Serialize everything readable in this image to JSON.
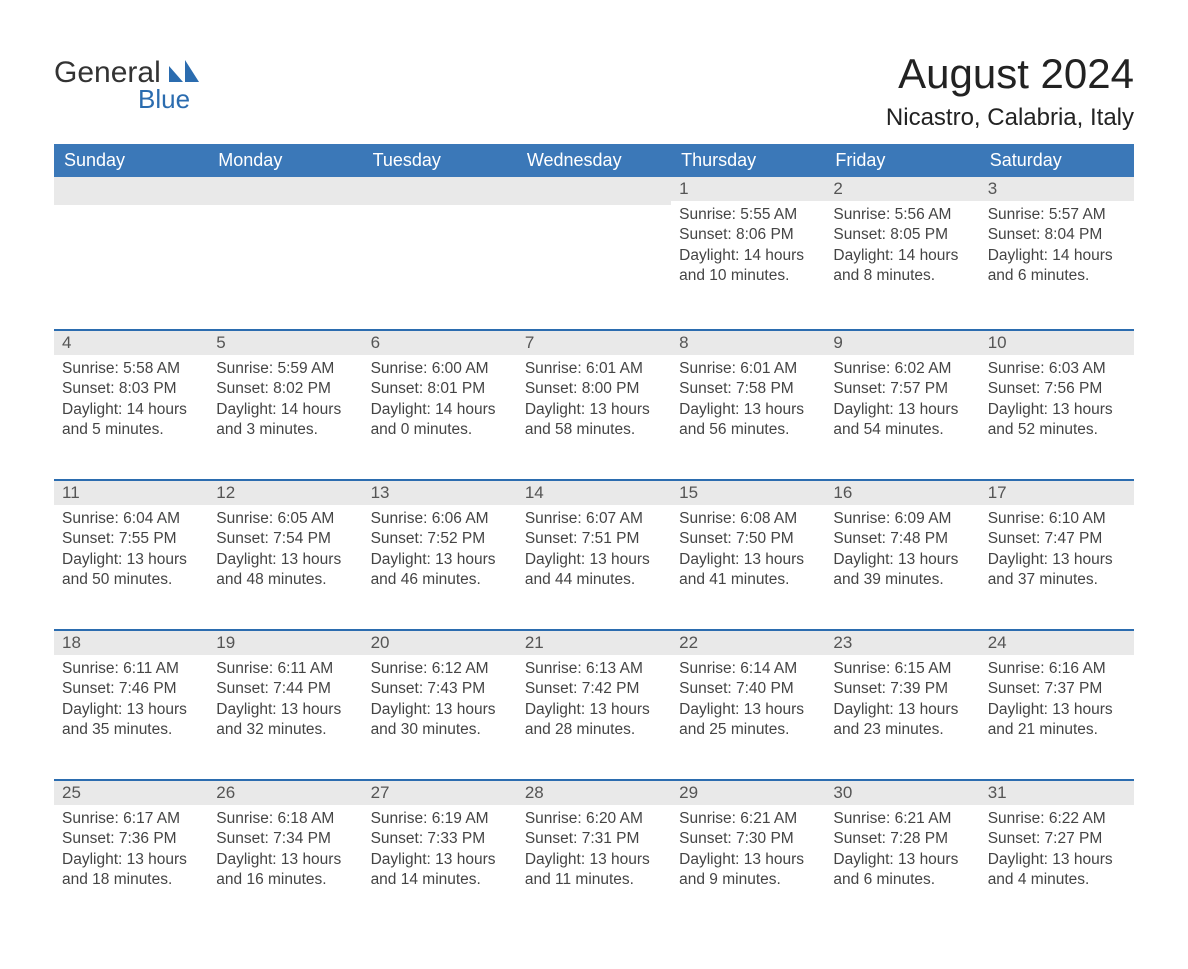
{
  "brand": {
    "word1": "General",
    "word2": "Blue"
  },
  "title": "August 2024",
  "subtitle": "Nicastro, Calabria, Italy",
  "colors": {
    "header_blue": "#3b78b8",
    "accent_blue": "#2b6caf",
    "day_bg": "#e9e9e9",
    "page_bg": "#ffffff",
    "dark_text": "#333333",
    "body_text": "#444444"
  },
  "calendar": {
    "type": "table",
    "columns": [
      "Sunday",
      "Monday",
      "Tuesday",
      "Wednesday",
      "Thursday",
      "Friday",
      "Saturday"
    ],
    "weeks": [
      [
        null,
        null,
        null,
        null,
        {
          "n": "1",
          "sunrise": "Sunrise: 5:55 AM",
          "sunset": "Sunset: 8:06 PM",
          "day": "Daylight: 14 hours and 10 minutes."
        },
        {
          "n": "2",
          "sunrise": "Sunrise: 5:56 AM",
          "sunset": "Sunset: 8:05 PM",
          "day": "Daylight: 14 hours and 8 minutes."
        },
        {
          "n": "3",
          "sunrise": "Sunrise: 5:57 AM",
          "sunset": "Sunset: 8:04 PM",
          "day": "Daylight: 14 hours and 6 minutes."
        }
      ],
      [
        {
          "n": "4",
          "sunrise": "Sunrise: 5:58 AM",
          "sunset": "Sunset: 8:03 PM",
          "day": "Daylight: 14 hours and 5 minutes."
        },
        {
          "n": "5",
          "sunrise": "Sunrise: 5:59 AM",
          "sunset": "Sunset: 8:02 PM",
          "day": "Daylight: 14 hours and 3 minutes."
        },
        {
          "n": "6",
          "sunrise": "Sunrise: 6:00 AM",
          "sunset": "Sunset: 8:01 PM",
          "day": "Daylight: 14 hours and 0 minutes."
        },
        {
          "n": "7",
          "sunrise": "Sunrise: 6:01 AM",
          "sunset": "Sunset: 8:00 PM",
          "day": "Daylight: 13 hours and 58 minutes."
        },
        {
          "n": "8",
          "sunrise": "Sunrise: 6:01 AM",
          "sunset": "Sunset: 7:58 PM",
          "day": "Daylight: 13 hours and 56 minutes."
        },
        {
          "n": "9",
          "sunrise": "Sunrise: 6:02 AM",
          "sunset": "Sunset: 7:57 PM",
          "day": "Daylight: 13 hours and 54 minutes."
        },
        {
          "n": "10",
          "sunrise": "Sunrise: 6:03 AM",
          "sunset": "Sunset: 7:56 PM",
          "day": "Daylight: 13 hours and 52 minutes."
        }
      ],
      [
        {
          "n": "11",
          "sunrise": "Sunrise: 6:04 AM",
          "sunset": "Sunset: 7:55 PM",
          "day": "Daylight: 13 hours and 50 minutes."
        },
        {
          "n": "12",
          "sunrise": "Sunrise: 6:05 AM",
          "sunset": "Sunset: 7:54 PM",
          "day": "Daylight: 13 hours and 48 minutes."
        },
        {
          "n": "13",
          "sunrise": "Sunrise: 6:06 AM",
          "sunset": "Sunset: 7:52 PM",
          "day": "Daylight: 13 hours and 46 minutes."
        },
        {
          "n": "14",
          "sunrise": "Sunrise: 6:07 AM",
          "sunset": "Sunset: 7:51 PM",
          "day": "Daylight: 13 hours and 44 minutes."
        },
        {
          "n": "15",
          "sunrise": "Sunrise: 6:08 AM",
          "sunset": "Sunset: 7:50 PM",
          "day": "Daylight: 13 hours and 41 minutes."
        },
        {
          "n": "16",
          "sunrise": "Sunrise: 6:09 AM",
          "sunset": "Sunset: 7:48 PM",
          "day": "Daylight: 13 hours and 39 minutes."
        },
        {
          "n": "17",
          "sunrise": "Sunrise: 6:10 AM",
          "sunset": "Sunset: 7:47 PM",
          "day": "Daylight: 13 hours and 37 minutes."
        }
      ],
      [
        {
          "n": "18",
          "sunrise": "Sunrise: 6:11 AM",
          "sunset": "Sunset: 7:46 PM",
          "day": "Daylight: 13 hours and 35 minutes."
        },
        {
          "n": "19",
          "sunrise": "Sunrise: 6:11 AM",
          "sunset": "Sunset: 7:44 PM",
          "day": "Daylight: 13 hours and 32 minutes."
        },
        {
          "n": "20",
          "sunrise": "Sunrise: 6:12 AM",
          "sunset": "Sunset: 7:43 PM",
          "day": "Daylight: 13 hours and 30 minutes."
        },
        {
          "n": "21",
          "sunrise": "Sunrise: 6:13 AM",
          "sunset": "Sunset: 7:42 PM",
          "day": "Daylight: 13 hours and 28 minutes."
        },
        {
          "n": "22",
          "sunrise": "Sunrise: 6:14 AM",
          "sunset": "Sunset: 7:40 PM",
          "day": "Daylight: 13 hours and 25 minutes."
        },
        {
          "n": "23",
          "sunrise": "Sunrise: 6:15 AM",
          "sunset": "Sunset: 7:39 PM",
          "day": "Daylight: 13 hours and 23 minutes."
        },
        {
          "n": "24",
          "sunrise": "Sunrise: 6:16 AM",
          "sunset": "Sunset: 7:37 PM",
          "day": "Daylight: 13 hours and 21 minutes."
        }
      ],
      [
        {
          "n": "25",
          "sunrise": "Sunrise: 6:17 AM",
          "sunset": "Sunset: 7:36 PM",
          "day": "Daylight: 13 hours and 18 minutes."
        },
        {
          "n": "26",
          "sunrise": "Sunrise: 6:18 AM",
          "sunset": "Sunset: 7:34 PM",
          "day": "Daylight: 13 hours and 16 minutes."
        },
        {
          "n": "27",
          "sunrise": "Sunrise: 6:19 AM",
          "sunset": "Sunset: 7:33 PM",
          "day": "Daylight: 13 hours and 14 minutes."
        },
        {
          "n": "28",
          "sunrise": "Sunrise: 6:20 AM",
          "sunset": "Sunset: 7:31 PM",
          "day": "Daylight: 13 hours and 11 minutes."
        },
        {
          "n": "29",
          "sunrise": "Sunrise: 6:21 AM",
          "sunset": "Sunset: 7:30 PM",
          "day": "Daylight: 13 hours and 9 minutes."
        },
        {
          "n": "30",
          "sunrise": "Sunrise: 6:21 AM",
          "sunset": "Sunset: 7:28 PM",
          "day": "Daylight: 13 hours and 6 minutes."
        },
        {
          "n": "31",
          "sunrise": "Sunrise: 6:22 AM",
          "sunset": "Sunset: 7:27 PM",
          "day": "Daylight: 13 hours and 4 minutes."
        }
      ]
    ]
  }
}
